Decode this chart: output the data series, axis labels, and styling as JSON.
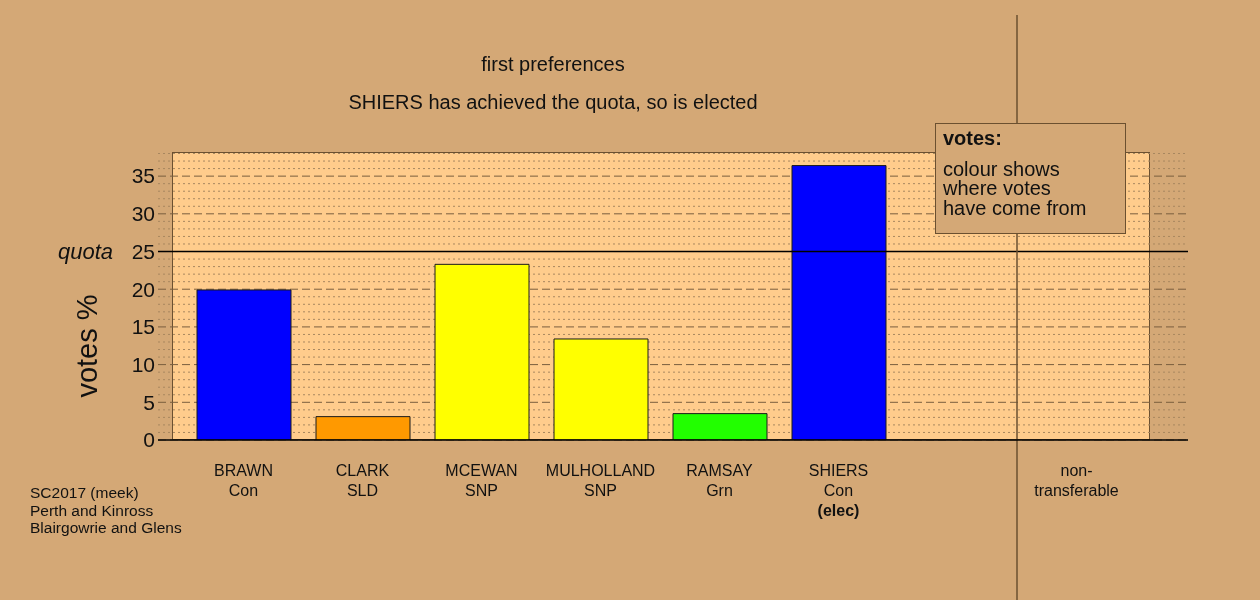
{
  "chart_data": {
    "type": "bar",
    "title": "first preferences",
    "subtitle": "SHIERS has achieved the quota, so is elected",
    "ylabel": "votes %",
    "categories": [
      "BRAWN\nCon",
      "CLARK\nSLD",
      "MCEWAN\nSNP",
      "MULHOLLAND\nSNP",
      "RAMSAY\nGrn",
      "SHIERS\nCon\n(elec)",
      null,
      "non-\ntransferable"
    ],
    "values": [
      19.9,
      3.1,
      23.3,
      13.4,
      3.5,
      36.4,
      null,
      0
    ],
    "colors": [
      "#0000ff",
      "#ff9900",
      "#ffff00",
      "#ffff00",
      "#22ff00",
      "#0000ff",
      null,
      null
    ],
    "ylim": [
      0,
      38.2
    ],
    "yticks": [
      0,
      {
        "value": 1,
        "label": null
      },
      {
        "value": 2,
        "label": null
      },
      {
        "value": 3,
        "label": null
      },
      {
        "value": 4,
        "label": null
      },
      5,
      {
        "value": 6,
        "label": null
      },
      {
        "value": 7,
        "label": null
      },
      {
        "value": 8,
        "label": null
      },
      {
        "value": 9,
        "label": null
      },
      10,
      {
        "value": 11,
        "label": null
      },
      {
        "value": 12,
        "label": null
      },
      {
        "value": 13,
        "label": null
      },
      {
        "value": 14,
        "label": null
      },
      15,
      {
        "value": 16,
        "label": null
      },
      {
        "value": 17,
        "label": null
      },
      {
        "value": 18,
        "label": null
      },
      {
        "value": 19,
        "label": null
      },
      20,
      {
        "value": 21,
        "label": null
      },
      {
        "value": 22,
        "label": null
      },
      {
        "value": 23,
        "label": null
      },
      {
        "value": 24,
        "label": null
      },
      25,
      {
        "value": 26,
        "label": null
      },
      {
        "value": 27,
        "label": null
      },
      {
        "value": 28,
        "label": null
      },
      {
        "value": 29,
        "label": null
      },
      30,
      {
        "value": 31,
        "label": null
      },
      {
        "value": 32,
        "label": null
      },
      {
        "value": 33,
        "label": null
      },
      {
        "value": 34,
        "label": null
      },
      35,
      {
        "value": 36,
        "label": null
      },
      {
        "value": 37,
        "label": null
      },
      {
        "value": 38,
        "label": null
      }
    ],
    "grid": "y",
    "ref_lines": [
      {
        "axis": "y",
        "value": 25,
        "label": "quota",
        "color": "#000000"
      },
      {
        "axis": "x",
        "value": "non-\ntransferable",
        "color": "#6b5030"
      }
    ],
    "annotations": [
      "votes:",
      "colour shows\nwhere votes\nhave come from",
      "SC2017 (meek)\nPerth and Kinross\nBlairgowrie and Glens"
    ]
  }
}
